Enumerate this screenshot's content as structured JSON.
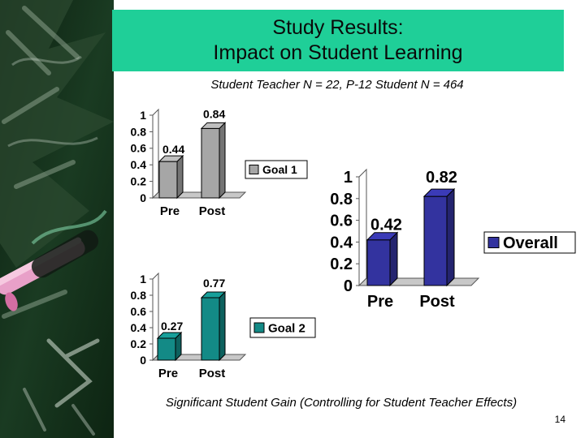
{
  "slide": {
    "title_line1": "Study Results:",
    "title_line2": "Impact on Student Learning",
    "subtitle": "Student Teacher N = 22, P-12 Student N = 464",
    "footer_note": "Significant Student Gain (Controlling for Student Teacher Effects)",
    "page_number": "14",
    "title_bg_color": "#1fcf98"
  },
  "chart_data": [
    {
      "id": "goal1",
      "type": "bar",
      "categories": [
        "Pre",
        "Post"
      ],
      "series": [
        {
          "name": "Goal 1",
          "values": [
            0.44,
            0.84
          ],
          "color": "#a6a6a6"
        }
      ],
      "data_labels": [
        "0.44",
        "0.84"
      ],
      "yticks": [
        "0",
        "0.2",
        "0.4",
        "0.6",
        "0.8",
        "1"
      ],
      "ylim": [
        0,
        1
      ],
      "legend_position": "right",
      "grid": false
    },
    {
      "id": "goal2",
      "type": "bar",
      "categories": [
        "Pre",
        "Post"
      ],
      "series": [
        {
          "name": "Goal 2",
          "values": [
            0.27,
            0.77
          ],
          "color": "#138a86"
        }
      ],
      "data_labels": [
        "0.27",
        "0.77"
      ],
      "yticks": [
        "0",
        "0.2",
        "0.4",
        "0.6",
        "0.8",
        "1"
      ],
      "ylim": [
        0,
        1
      ],
      "legend_position": "right",
      "grid": false
    },
    {
      "id": "overall",
      "type": "bar",
      "categories": [
        "Pre",
        "Post"
      ],
      "series": [
        {
          "name": "Overall",
          "values": [
            0.42,
            0.82
          ],
          "color": "#33339f"
        }
      ],
      "data_labels": [
        "0.42",
        "0.82"
      ],
      "yticks": [
        "0",
        "0.2",
        "0.4",
        "0.6",
        "0.8",
        "1"
      ],
      "ylim": [
        0,
        1
      ],
      "legend_position": "right",
      "grid": false
    }
  ]
}
